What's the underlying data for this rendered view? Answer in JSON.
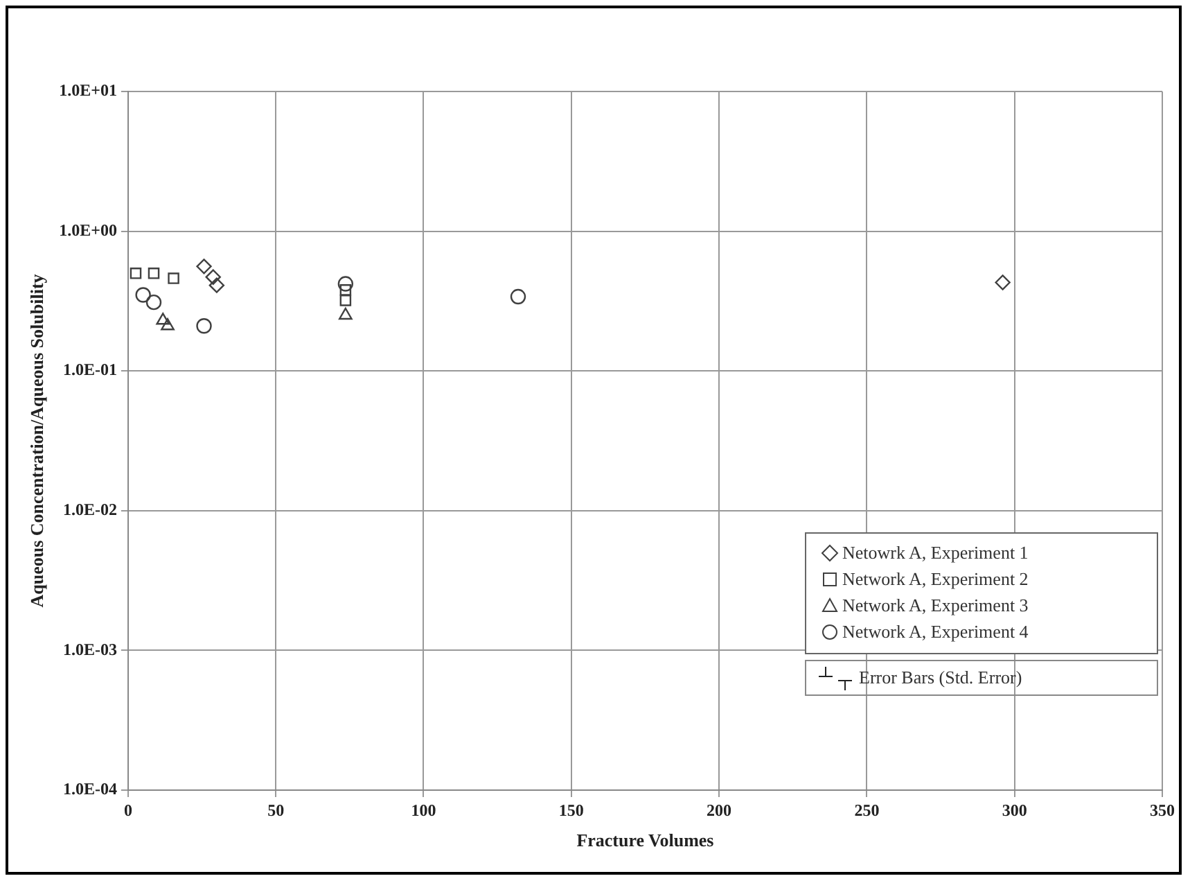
{
  "chart_data": {
    "type": "scatter",
    "xlabel": "Fracture Volumes",
    "ylabel": "Aqueous Concentration/Aqueous Solubility",
    "log": "y",
    "grid": true,
    "legend": "bottom right",
    "xlim": [
      0,
      350
    ],
    "xticks": [
      0,
      50,
      100,
      150,
      200,
      250,
      300,
      350
    ],
    "ylim": [
      0.0001,
      10
    ],
    "yticks": [
      {
        "value": 0.0001,
        "label": "1.0E-04"
      },
      {
        "value": 0.001,
        "label": "1.0E-03"
      },
      {
        "value": 0.01,
        "label": "1.0E-02"
      },
      {
        "value": 0.1,
        "label": "1.0E-01"
      },
      {
        "value": 1,
        "label": "1.0E+00"
      },
      {
        "value": 10,
        "label": "1.0E+01"
      }
    ],
    "series": [
      {
        "name": "Netowrk A, Experiment 1",
        "color": "#404040",
        "marker": "diamond",
        "x": [
          25.7,
          28.8,
          30,
          296
        ],
        "values": [
          0.56,
          0.47,
          0.41,
          0.43
        ]
      },
      {
        "name": "Network A, Experiment 2",
        "color": "#404040",
        "marker": "square",
        "x": [
          2.6,
          8.7,
          15.4,
          73.6,
          73.6
        ],
        "values": [
          0.5,
          0.5,
          0.46,
          0.38,
          0.32
        ]
      },
      {
        "name": "Network A, Experiment 3",
        "color": "#404040",
        "marker": "triangle",
        "x": [
          11.8,
          13.4,
          73.6
        ],
        "values": [
          0.23,
          0.21,
          0.25
        ]
      },
      {
        "name": "Network A, Experiment 4",
        "color": "#404040",
        "marker": "circle",
        "x": [
          5.1,
          8.7,
          25.7,
          132,
          73.6
        ],
        "values": [
          0.35,
          0.31,
          0.21,
          0.34,
          0.42
        ]
      }
    ],
    "annotations": [
      "Error Bars (Std. Error)"
    ]
  }
}
